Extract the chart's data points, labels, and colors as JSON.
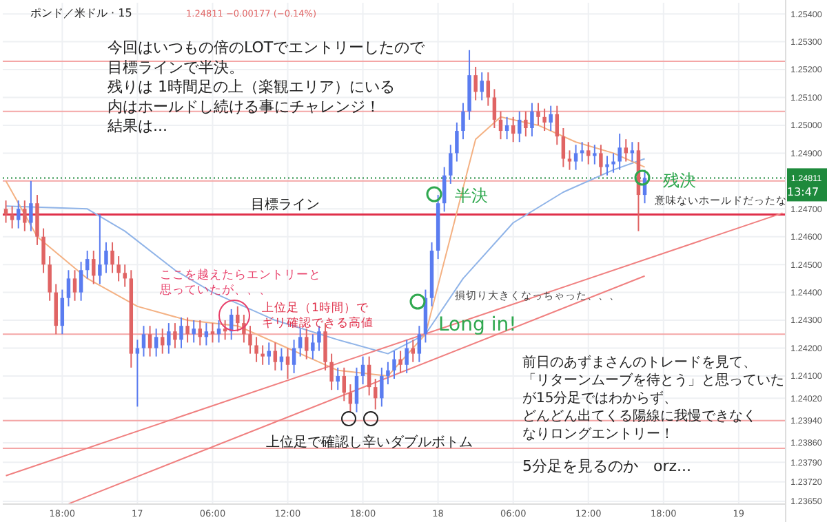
{
  "chart_data": {
    "type": "candlestick",
    "title": "ポンド／米ドル · 15",
    "subtitle": "1.24811  −0.00177 (−0.14%)",
    "categories": [
      null,
      null,
      null,
      null,
      null,
      null,
      null,
      null,
      null,
      "18:00",
      null,
      null,
      null,
      null,
      null,
      null,
      null,
      null,
      null,
      null,
      null,
      "17",
      null,
      null,
      null,
      null,
      null,
      null,
      null,
      null,
      null,
      null,
      null,
      "06:00",
      null,
      null,
      null,
      null,
      null,
      null,
      null,
      null,
      null,
      null,
      null,
      "12:00",
      null,
      null,
      null,
      null,
      null,
      null,
      null,
      null,
      null,
      null,
      null,
      "18:00",
      null,
      null,
      null,
      null,
      null,
      null,
      null,
      null,
      null,
      null,
      null,
      "18",
      null,
      null,
      null,
      null,
      null,
      null,
      null,
      null,
      null,
      null,
      null,
      "06:00",
      null,
      null,
      null,
      null,
      null,
      null,
      null,
      null,
      null,
      null,
      null,
      "12:00",
      null,
      null,
      null,
      null,
      null,
      null,
      null,
      null,
      null,
      null,
      null,
      "18:00",
      null,
      null,
      null,
      null,
      null,
      null,
      null,
      null,
      null,
      null,
      null,
      "19",
      null,
      null,
      null,
      null,
      null,
      null,
      null
    ],
    "ohlc": [
      [
        1.247,
        1.2473,
        1.2465,
        1.2468
      ],
      [
        1.2468,
        1.2471,
        1.2463,
        1.2466
      ],
      [
        1.2466,
        1.2473,
        1.2463,
        1.247
      ],
      [
        1.247,
        1.2473,
        1.2462,
        1.2465
      ],
      [
        1.2465,
        1.248,
        1.2462,
        1.2472
      ],
      [
        1.2472,
        1.2475,
        1.2457,
        1.246
      ],
      [
        1.246,
        1.2463,
        1.2447,
        1.245
      ],
      [
        1.245,
        1.2453,
        1.2437,
        1.244
      ],
      [
        1.244,
        1.2443,
        1.2425,
        1.2428
      ],
      [
        1.2428,
        1.2441,
        1.2425,
        1.2438
      ],
      [
        1.2438,
        1.2448,
        1.2435,
        1.2445
      ],
      [
        1.2445,
        1.2448,
        1.2437,
        1.244
      ],
      [
        1.244,
        1.2451,
        1.2437,
        1.2448
      ],
      [
        1.2448,
        1.2455,
        1.2445,
        1.2452
      ],
      [
        1.2452,
        1.2455,
        1.2443,
        1.2446
      ],
      [
        1.2446,
        1.2468,
        1.2443,
        1.245
      ],
      [
        1.245,
        1.2458,
        1.2447,
        1.2455
      ],
      [
        1.2455,
        1.2458,
        1.2447,
        1.245
      ],
      [
        1.245,
        1.2453,
        1.2444,
        1.2447
      ],
      [
        1.2447,
        1.245,
        1.2442,
        1.2445
      ],
      [
        1.2445,
        1.2448,
        1.2413,
        1.2418
      ],
      [
        1.2418,
        1.2423,
        1.2399,
        1.242
      ],
      [
        1.242,
        1.2428,
        1.2417,
        1.2425
      ],
      [
        1.2425,
        1.2428,
        1.2417,
        1.242
      ],
      [
        1.242,
        1.2427,
        1.2417,
        1.2424
      ],
      [
        1.2424,
        1.2427,
        1.2418,
        1.2421
      ],
      [
        1.2421,
        1.2429,
        1.2418,
        1.2426
      ],
      [
        1.2426,
        1.2429,
        1.242,
        1.2423
      ],
      [
        1.2423,
        1.2431,
        1.242,
        1.2428
      ],
      [
        1.2428,
        1.2431,
        1.2422,
        1.2425
      ],
      [
        1.2425,
        1.243,
        1.2422,
        1.2427
      ],
      [
        1.2427,
        1.243,
        1.2421,
        1.2424
      ],
      [
        1.2424,
        1.2429,
        1.2421,
        1.2426
      ],
      [
        1.2426,
        1.2429,
        1.2422,
        1.2425
      ],
      [
        1.2425,
        1.243,
        1.2422,
        1.2427
      ],
      [
        1.2427,
        1.243,
        1.2423,
        1.2426
      ],
      [
        1.2426,
        1.2434,
        1.2423,
        1.2432
      ],
      [
        1.2432,
        1.2435,
        1.2426,
        1.2429
      ],
      [
        1.2429,
        1.2432,
        1.2422,
        1.2425
      ],
      [
        1.2425,
        1.2428,
        1.2418,
        1.2421
      ],
      [
        1.2421,
        1.2424,
        1.2415,
        1.2418
      ],
      [
        1.2418,
        1.2421,
        1.2414,
        1.2417
      ],
      [
        1.2417,
        1.2422,
        1.2414,
        1.2419
      ],
      [
        1.2419,
        1.2422,
        1.2412,
        1.2415
      ],
      [
        1.2415,
        1.242,
        1.2412,
        1.2417
      ],
      [
        1.2417,
        1.242,
        1.2409,
        1.2414
      ],
      [
        1.2414,
        1.2423,
        1.2411,
        1.242
      ],
      [
        1.242,
        1.2427,
        1.2417,
        1.2424
      ],
      [
        1.2424,
        1.2427,
        1.2416,
        1.2419
      ],
      [
        1.2419,
        1.2425,
        1.2416,
        1.2422
      ],
      [
        1.2422,
        1.2428,
        1.2419,
        1.2426
      ],
      [
        1.2426,
        1.2429,
        1.2412,
        1.2415
      ],
      [
        1.2415,
        1.2418,
        1.2405,
        1.2408
      ],
      [
        1.2408,
        1.2413,
        1.2405,
        1.241
      ],
      [
        1.241,
        1.2413,
        1.2401,
        1.2404
      ],
      [
        1.2404,
        1.2407,
        1.2397,
        1.24
      ],
      [
        1.24,
        1.2413,
        1.2397,
        1.241
      ],
      [
        1.241,
        1.2417,
        1.2407,
        1.2414
      ],
      [
        1.2414,
        1.2417,
        1.2403,
        1.2406
      ],
      [
        1.2406,
        1.2409,
        1.2398,
        1.2402
      ],
      [
        1.2402,
        1.2413,
        1.2399,
        1.241
      ],
      [
        1.241,
        1.2415,
        1.2407,
        1.2412
      ],
      [
        1.2412,
        1.2419,
        1.2409,
        1.2416
      ],
      [
        1.2416,
        1.2419,
        1.2411,
        1.2414
      ],
      [
        1.2414,
        1.2423,
        1.2411,
        1.242
      ],
      [
        1.242,
        1.2423,
        1.2415,
        1.2418
      ],
      [
        1.2418,
        1.2428,
        1.2415,
        1.2425
      ],
      [
        1.2425,
        1.2441,
        1.2422,
        1.2438
      ],
      [
        1.2438,
        1.2458,
        1.2435,
        1.2455
      ],
      [
        1.2455,
        1.2475,
        1.2452,
        1.2472
      ],
      [
        1.2472,
        1.2485,
        1.2469,
        1.2482
      ],
      [
        1.2482,
        1.2493,
        1.2479,
        1.249
      ],
      [
        1.249,
        1.2501,
        1.2487,
        1.2498
      ],
      [
        1.2498,
        1.2508,
        1.2495,
        1.2505
      ],
      [
        1.2505,
        1.2527,
        1.2502,
        1.2518
      ],
      [
        1.2518,
        1.2521,
        1.2509,
        1.2512
      ],
      [
        1.2512,
        1.2519,
        1.2509,
        1.2516
      ],
      [
        1.2516,
        1.2519,
        1.2507,
        1.251
      ],
      [
        1.251,
        1.2513,
        1.2499,
        1.2502
      ],
      [
        1.2502,
        1.2505,
        1.2495,
        1.2498
      ],
      [
        1.2498,
        1.2503,
        1.2495,
        1.25
      ],
      [
        1.25,
        1.2503,
        1.2494,
        1.2497
      ],
      [
        1.2497,
        1.2505,
        1.2494,
        1.2502
      ],
      [
        1.2502,
        1.2505,
        1.2496,
        1.2499
      ],
      [
        1.2499,
        1.2508,
        1.2496,
        1.2505
      ],
      [
        1.2505,
        1.2508,
        1.25,
        1.2503
      ],
      [
        1.2503,
        1.2506,
        1.2498,
        1.2501
      ],
      [
        1.2501,
        1.2507,
        1.2498,
        1.2504
      ],
      [
        1.2504,
        1.2507,
        1.2493,
        1.2496
      ],
      [
        1.2496,
        1.2499,
        1.2485,
        1.2488
      ],
      [
        1.2488,
        1.2491,
        1.2484,
        1.2487
      ],
      [
        1.2487,
        1.2493,
        1.2484,
        1.249
      ],
      [
        1.249,
        1.2494,
        1.2487,
        1.2491
      ],
      [
        1.2491,
        1.2494,
        1.2486,
        1.2489
      ],
      [
        1.2489,
        1.2493,
        1.2486,
        1.249
      ],
      [
        1.249,
        1.2493,
        1.2482,
        1.2485
      ],
      [
        1.2485,
        1.2489,
        1.2482,
        1.2486
      ],
      [
        1.2486,
        1.249,
        1.2483,
        1.2487
      ],
      [
        1.2487,
        1.2497,
        1.2484,
        1.2492
      ],
      [
        1.2492,
        1.2495,
        1.2487,
        1.249
      ],
      [
        1.249,
        1.2494,
        1.2487,
        1.2491
      ],
      [
        1.2491,
        1.2494,
        1.2462,
        1.2475
      ],
      [
        1.2475,
        1.2484,
        1.2472,
        1.24811
      ],
      null,
      null,
      null,
      null,
      null,
      null,
      null,
      null,
      null,
      null,
      null,
      null,
      null,
      null,
      null,
      null,
      null,
      null,
      null,
      null,
      null,
      null
    ],
    "series": [
      {
        "type": "line",
        "color": "#90b4e8",
        "values": [
          1.2471,
          null,
          null,
          null,
          null,
          null,
          null,
          null,
          null,
          null,
          null,
          null,
          null,
          1.247,
          null,
          null,
          null,
          null,
          null,
          1.2462,
          null,
          null,
          null,
          null,
          null,
          null,
          null,
          1.2448,
          null,
          null,
          null,
          null,
          null,
          1.244,
          null,
          null,
          null,
          null,
          null,
          null,
          null,
          null,
          null,
          1.243,
          null,
          null,
          null,
          null,
          null,
          null,
          null,
          null,
          null,
          1.2423,
          null,
          null,
          null,
          null,
          null,
          null,
          null,
          1.2418,
          null,
          null,
          null,
          null,
          null,
          1.2425,
          null,
          null,
          null,
          null,
          null,
          1.2445,
          null,
          null,
          null,
          null,
          null,
          null,
          null,
          1.2465,
          null,
          null,
          null,
          null,
          null,
          null,
          null,
          1.2476,
          null,
          null,
          null,
          null,
          null,
          null,
          null,
          1.2484,
          null,
          null,
          null,
          null,
          1.2488,
          null,
          null,
          null,
          null,
          null,
          null,
          null,
          null,
          null,
          null,
          null,
          null,
          null,
          null,
          null,
          null,
          null,
          null,
          null,
          null,
          null,
          null
        ]
      },
      {
        "type": "line",
        "color": "#f4b183",
        "values": [
          1.248,
          null,
          null,
          null,
          null,
          1.246,
          null,
          null,
          null,
          null,
          null,
          null,
          null,
          1.2445,
          null,
          null,
          null,
          null,
          null,
          null,
          null,
          1.2435,
          null,
          null,
          null,
          null,
          null,
          null,
          null,
          1.243,
          null,
          null,
          null,
          null,
          null,
          null,
          null,
          1.2428,
          null,
          null,
          null,
          null,
          null,
          null,
          null,
          1.242,
          null,
          null,
          null,
          null,
          null,
          null,
          null,
          1.2412,
          null,
          null,
          null,
          null,
          null,
          null,
          null,
          1.241,
          null,
          null,
          null,
          null,
          null,
          1.2425,
          null,
          null,
          null,
          1.246,
          null,
          null,
          null,
          1.2495,
          null,
          null,
          null,
          1.2503,
          null,
          null,
          null,
          null,
          null,
          1.25,
          null,
          null,
          null,
          null,
          null,
          1.2494,
          null,
          null,
          null,
          null,
          null,
          1.249,
          null,
          null,
          null,
          null,
          1.2485,
          null,
          null,
          null,
          null,
          null,
          null,
          null,
          null,
          null,
          null,
          null,
          null,
          null,
          null,
          null,
          null,
          null,
          null,
          null,
          null,
          null,
          null
        ]
      },
      {
        "type": "line",
        "color": "#f08080",
        "values": [
          1.23742,
          null,
          null,
          null,
          null,
          null,
          null,
          null,
          null,
          null,
          null,
          null,
          null,
          null,
          null,
          null,
          null,
          null,
          null,
          null,
          null,
          null,
          null,
          null,
          null,
          null,
          null,
          null,
          null,
          null,
          null,
          null,
          null,
          null,
          null,
          null,
          null,
          null,
          null,
          null,
          null,
          null,
          null,
          null,
          null,
          null,
          null,
          null,
          null,
          null,
          null,
          null,
          null,
          null,
          null,
          null,
          null,
          null,
          null,
          null,
          null,
          null,
          null,
          null,
          null,
          null,
          null,
          null,
          null,
          null,
          null,
          null,
          null,
          null,
          null,
          null,
          null,
          null,
          null,
          null,
          null,
          null,
          null,
          null,
          null,
          null,
          null,
          null,
          null,
          null,
          null,
          null,
          null,
          null,
          null,
          null,
          null,
          null,
          null,
          null,
          null,
          null,
          null,
          null,
          null,
          null,
          null,
          null,
          null,
          null,
          null,
          null,
          null,
          null,
          null,
          null,
          null,
          null,
          null,
          null,
          null,
          null,
          null,
          null,
          1.24685
        ]
      },
      {
        "type": "line",
        "color": "#f08080",
        "values": [
          null,
          null,
          null,
          null,
          null,
          null,
          null,
          null,
          null,
          null,
          1.23641,
          null,
          null,
          null,
          null,
          null,
          null,
          null,
          null,
          null,
          null,
          null,
          null,
          null,
          null,
          null,
          null,
          null,
          null,
          null,
          null,
          null,
          null,
          null,
          null,
          null,
          null,
          null,
          null,
          null,
          null,
          null,
          null,
          null,
          null,
          null,
          null,
          null,
          null,
          null,
          null,
          null,
          null,
          null,
          null,
          null,
          null,
          null,
          null,
          null,
          null,
          null,
          null,
          null,
          null,
          null,
          null,
          null,
          null,
          null,
          null,
          null,
          null,
          null,
          null,
          null,
          null,
          null,
          null,
          null,
          null,
          null,
          null,
          null,
          null,
          null,
          null,
          null,
          null,
          null,
          null,
          null,
          null,
          null,
          null,
          null,
          null,
          null,
          null,
          null,
          null,
          null,
          1.24459,
          null,
          null,
          null,
          null,
          null,
          null,
          null,
          null,
          null,
          null,
          null,
          null,
          null,
          null,
          null,
          null,
          null,
          null,
          null,
          null,
          null,
          null
        ]
      }
    ],
    "ylim": [
      1.2364,
      1.2544
    ],
    "yticks": [
      {
        "value": 1.254,
        "label": "1.25400"
      },
      {
        "value": 1.253,
        "label": "1.25300"
      },
      {
        "value": 1.252,
        "label": "1.25200"
      },
      {
        "value": 1.251,
        "label": "1.25100"
      },
      {
        "value": 1.25,
        "label": "1.25000"
      },
      {
        "value": 1.249,
        "label": "1.24900"
      },
      {
        "value": 1.247,
        "label": "1.24700"
      },
      {
        "value": 1.246,
        "label": "1.24600"
      },
      {
        "value": 1.245,
        "label": "1.24500"
      },
      {
        "value": 1.244,
        "label": "1.24400"
      },
      {
        "value": 1.243,
        "label": "1.24300"
      },
      {
        "value": 1.242,
        "label": "1.24200"
      },
      {
        "value": 1.241,
        "label": "1.24100"
      },
      {
        "value": 1.2402,
        "label": "1.24020"
      },
      {
        "value": 1.2394,
        "label": "1.23940"
      },
      {
        "value": 1.2386,
        "label": "1.23860"
      },
      {
        "value": 1.2379,
        "label": "1.23790"
      },
      {
        "value": 1.2372,
        "label": "1.23720"
      },
      {
        "value": 1.2365,
        "label": "1.23650"
      }
    ],
    "grid": true,
    "ref_lines": [
      {
        "axis": "y",
        "value": 1.2523,
        "color": "#f4a6a6"
      },
      {
        "axis": "y",
        "value": 1.2505,
        "color": "#f4a6a6"
      },
      {
        "axis": "y",
        "value": 1.248,
        "color": "#f4a6a6"
      },
      {
        "axis": "y",
        "value": 1.2468,
        "label": "目標ライン",
        "color": "#e0304a"
      },
      {
        "axis": "y",
        "value": 1.2425,
        "color": "#f4a6a6"
      },
      {
        "axis": "y",
        "value": 1.2394,
        "color": "#f4a6a6"
      },
      {
        "axis": "y",
        "value": 1.2384,
        "color": "#f4a6a6"
      },
      {
        "axis": "y",
        "value": 1.24811,
        "label": "1.24811",
        "color": "#1e8a3c"
      }
    ],
    "annotations": [
      "今回はいつもの倍のLOTでエントリーしたので目標ラインで半決。残りは 1時間足の上（楽観エリア）にいる内はホールドし続ける事にチャレンジ！結果は...",
      "半決",
      "残決",
      "意味ないホールドだったな",
      "ここを越えたらエントリーと思っていたが、、、",
      "上位足（1時間）でギリ確認できる高値",
      "損切り大きくなっちゃった、、、",
      "Long in!",
      "前日のあずまさんのトレードを見て、「リターンムーブを待とう」と思っていたが15分足ではわからず、どんどん出てくる陽線に我慢できなくなりロングエントリー！",
      "上位足で確認し辛いダブルボトム",
      "5分足を見るのか　orz...",
      "13:47"
    ]
  }
}
